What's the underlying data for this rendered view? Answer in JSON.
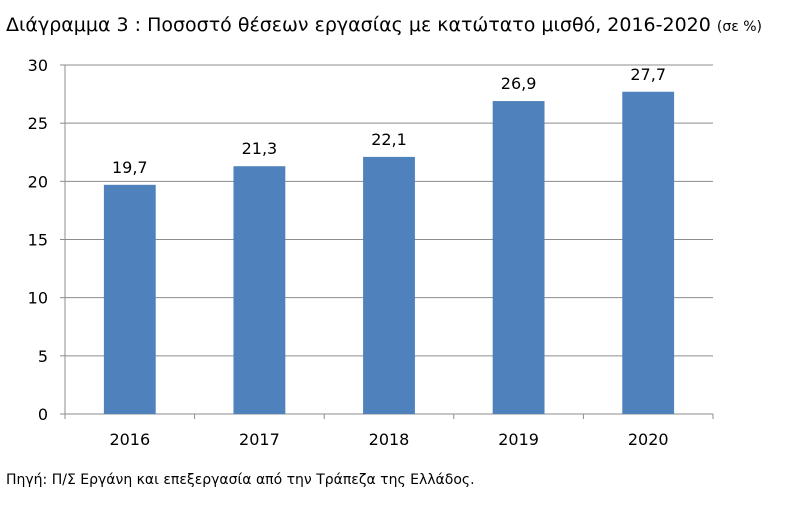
{
  "title": "Διάγραμμα 3 : Ποσοστό θέσεων εργασίας με κατώτατο μισθό, 2016-2020",
  "title_unit": "(σε %)",
  "source": "Πηγή: Π/Σ Εργάνη και επεξεργασία από την Τράπεζα της Ελλάδος.",
  "colors": {
    "bar": "#4f81bd",
    "gridline": "#8c8c8c",
    "axis": "#8c8c8c",
    "text": "#000000"
  },
  "chart_data": {
    "type": "bar",
    "title": "Διάγραμμα 3 : Ποσοστό θέσεων εργασίας με κατώτατο μισθό, 2016-2020 (σε %)",
    "categories": [
      "2016",
      "2017",
      "2018",
      "2019",
      "2020"
    ],
    "values": [
      19.7,
      21.3,
      22.1,
      26.9,
      27.7
    ],
    "data_labels": [
      "19,7",
      "21,3",
      "22,1",
      "26,9",
      "27,7"
    ],
    "yticks": [
      "0",
      "5",
      "10",
      "15",
      "20",
      "25",
      "30"
    ],
    "ylim": [
      0,
      30
    ],
    "xlabel": "",
    "ylabel": "",
    "grid": true,
    "legend": "none"
  }
}
